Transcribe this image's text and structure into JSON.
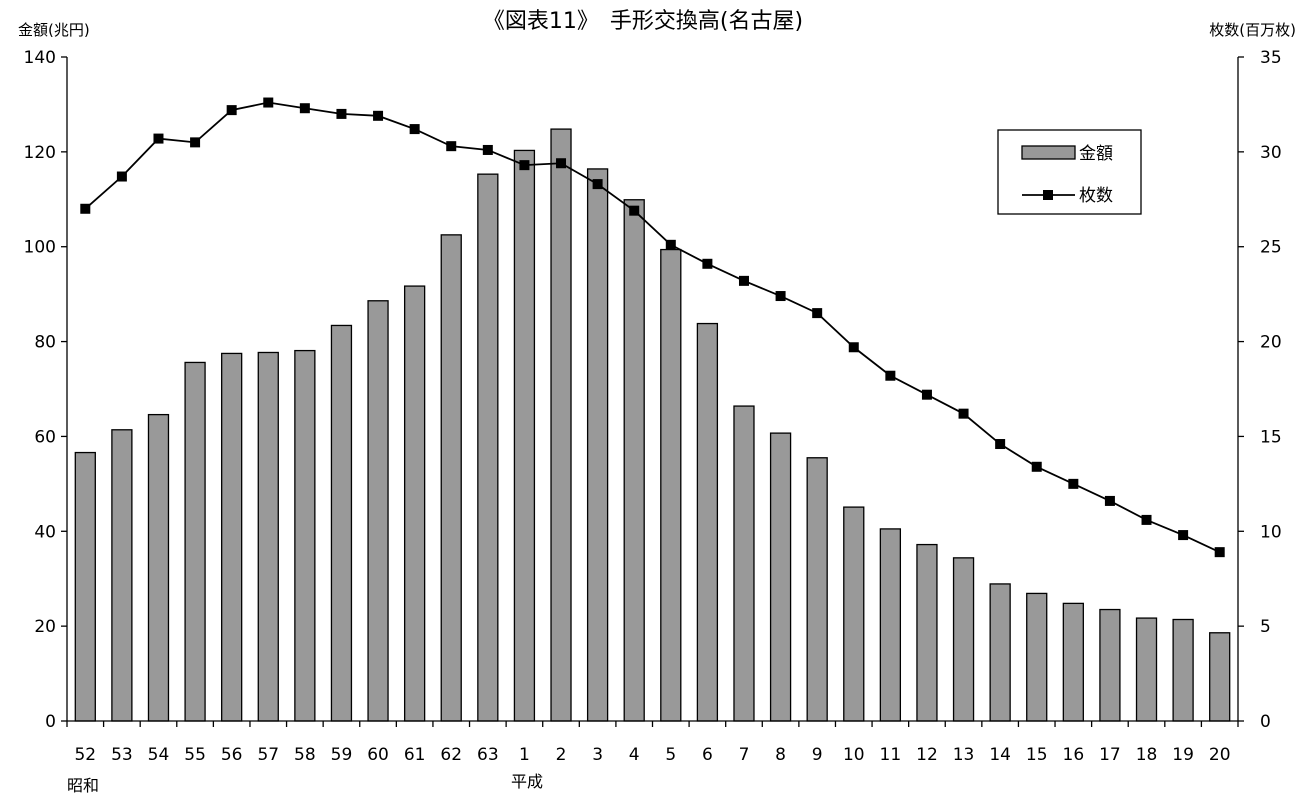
{
  "chart_data": {
    "type": "bar",
    "title": "《図表11》　手形交換高(名古屋)",
    "y_left_label": "金額(兆円)",
    "y_right_label": "枚数(百万枚)",
    "era_labels": [
      "昭和",
      "平成"
    ],
    "ylim_left": [
      0,
      140
    ],
    "ylim_right": [
      0,
      35
    ],
    "y_left_ticks": [
      "0",
      "20",
      "40",
      "60",
      "80",
      "100",
      "120",
      "140"
    ],
    "y_right_ticks": [
      "0",
      "5",
      "10",
      "15",
      "20",
      "25",
      "30",
      "35"
    ],
    "grid": false,
    "legend_position": "top-right",
    "categories": [
      "52",
      "53",
      "54",
      "55",
      "56",
      "57",
      "58",
      "59",
      "60",
      "61",
      "62",
      "63",
      "1",
      "2",
      "3",
      "4",
      "5",
      "6",
      "7",
      "8",
      "9",
      "10",
      "11",
      "12",
      "13",
      "14",
      "15",
      "16",
      "17",
      "18",
      "19",
      "20"
    ],
    "series": [
      {
        "name": "金額",
        "type": "bar",
        "axis": "left",
        "values": [
          56.6,
          61.4,
          64.6,
          75.6,
          77.5,
          77.7,
          78.1,
          83.4,
          88.6,
          91.7,
          102.5,
          115.3,
          120.3,
          124.8,
          116.4,
          109.9,
          99.4,
          83.8,
          66.4,
          60.7,
          55.5,
          45.1,
          40.5,
          37.2,
          34.4,
          28.9,
          26.9,
          24.8,
          23.5,
          21.7,
          21.4,
          18.6
        ]
      },
      {
        "name": "枚数",
        "type": "line",
        "axis": "right",
        "values": [
          27.0,
          28.7,
          30.7,
          30.5,
          32.2,
          32.6,
          32.3,
          32.0,
          31.9,
          31.2,
          30.3,
          30.1,
          29.3,
          29.4,
          28.3,
          26.9,
          25.1,
          24.1,
          23.2,
          22.4,
          21.5,
          19.7,
          18.2,
          17.2,
          16.2,
          14.6,
          13.4,
          12.5,
          11.6,
          10.6,
          9.8,
          8.9
        ]
      }
    ]
  }
}
